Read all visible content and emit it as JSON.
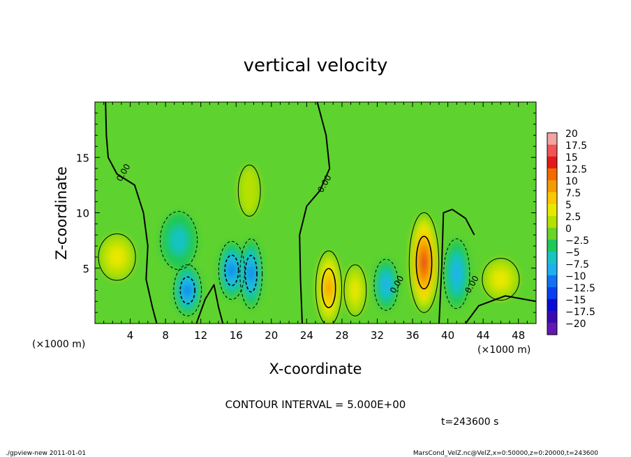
{
  "chart_data": {
    "type": "heatmap",
    "title": "vertical velocity",
    "xlabel": "X-coordinate",
    "ylabel": "Z-coordinate",
    "xunit_left": "(×1000 m)",
    "xunit_right": "(×1000 m)",
    "xlim": [
      0,
      50
    ],
    "ylim": [
      0,
      20
    ],
    "xticks": [
      "4",
      "8",
      "12",
      "16",
      "20",
      "24",
      "28",
      "32",
      "36",
      "40",
      "44",
      "48"
    ],
    "xtick_values": [
      4,
      8,
      12,
      16,
      20,
      24,
      28,
      32,
      36,
      40,
      44,
      48
    ],
    "yticks": [
      "5",
      "10",
      "15"
    ],
    "ytick_values": [
      5,
      10,
      15
    ],
    "contour_interval": "CONTOUR INTERVAL = 5.000E+00",
    "time_label": "t=243600 s",
    "contour_labels": [
      {
        "text": "0.00",
        "x": 3.5,
        "y": 13.5
      },
      {
        "text": "0.00",
        "x": 26.3,
        "y": 12.5
      },
      {
        "text": "0.00",
        "x": 34.5,
        "y": 3.4
      },
      {
        "text": "0.00",
        "x": 43.0,
        "y": 3.4
      }
    ],
    "colorbar": {
      "labels": [
        "20",
        "17.5",
        "15",
        "12.5",
        "10",
        "7.5",
        "5",
        "2.5",
        "0",
        "−2.5",
        "−5",
        "−7.5",
        "−10",
        "−12.5",
        "−15",
        "−17.5",
        "−20"
      ],
      "colors": [
        "#f4a3a3",
        "#ef5555",
        "#e41a1a",
        "#f26b00",
        "#f59a00",
        "#f9c800",
        "#e8e800",
        "#b6e000",
        "#6ad428",
        "#1fc85a",
        "#19c3c3",
        "#1fb1ef",
        "#1272f2",
        "#0a3ff0",
        "#0a0ad4",
        "#3a0ab0",
        "#6418b0"
      ]
    },
    "features": [
      {
        "kind": "updraft",
        "x": 37.3,
        "z": 5.5,
        "rx": 1.6,
        "rz": 4.3,
        "max": 15
      },
      {
        "kind": "updraft",
        "x": 26.5,
        "z": 3.2,
        "rx": 1.4,
        "rz": 3.2,
        "max": 10
      },
      {
        "kind": "updraft",
        "x": 29.5,
        "z": 3.0,
        "rx": 1.2,
        "rz": 2.2,
        "max": 5
      },
      {
        "kind": "updraft",
        "x": 46.0,
        "z": 4.0,
        "rx": 2.0,
        "rz": 1.8,
        "max": 5
      },
      {
        "kind": "updraft",
        "x": 2.5,
        "z": 6.0,
        "rx": 2.0,
        "rz": 2.0,
        "max": 5
      },
      {
        "kind": "updraft",
        "x": 17.5,
        "z": 12.0,
        "rx": 1.2,
        "rz": 2.2,
        "max": 2.5
      },
      {
        "kind": "downdraft",
        "x": 10.5,
        "z": 3.0,
        "rx": 1.5,
        "rz": 2.2,
        "min": -10
      },
      {
        "kind": "downdraft",
        "x": 9.5,
        "z": 7.5,
        "rx": 2.0,
        "rz": 2.5,
        "min": -5
      },
      {
        "kind": "downdraft",
        "x": 15.5,
        "z": 4.8,
        "rx": 1.4,
        "rz": 2.5,
        "min": -10
      },
      {
        "kind": "downdraft",
        "x": 17.7,
        "z": 4.5,
        "rx": 1.2,
        "rz": 3.0,
        "min": -10
      },
      {
        "kind": "downdraft",
        "x": 33.0,
        "z": 3.5,
        "rx": 1.3,
        "rz": 2.2,
        "min": -7.5
      },
      {
        "kind": "downdraft",
        "x": 41.0,
        "z": 4.5,
        "rx": 1.4,
        "rz": 3.0,
        "min": -7.5
      }
    ]
  },
  "footer": {
    "left": "./gpview-new   2011-01-01",
    "right": "MarsCond_VelZ.nc@VelZ,x=0:50000,z=0:20000,t=243600"
  }
}
